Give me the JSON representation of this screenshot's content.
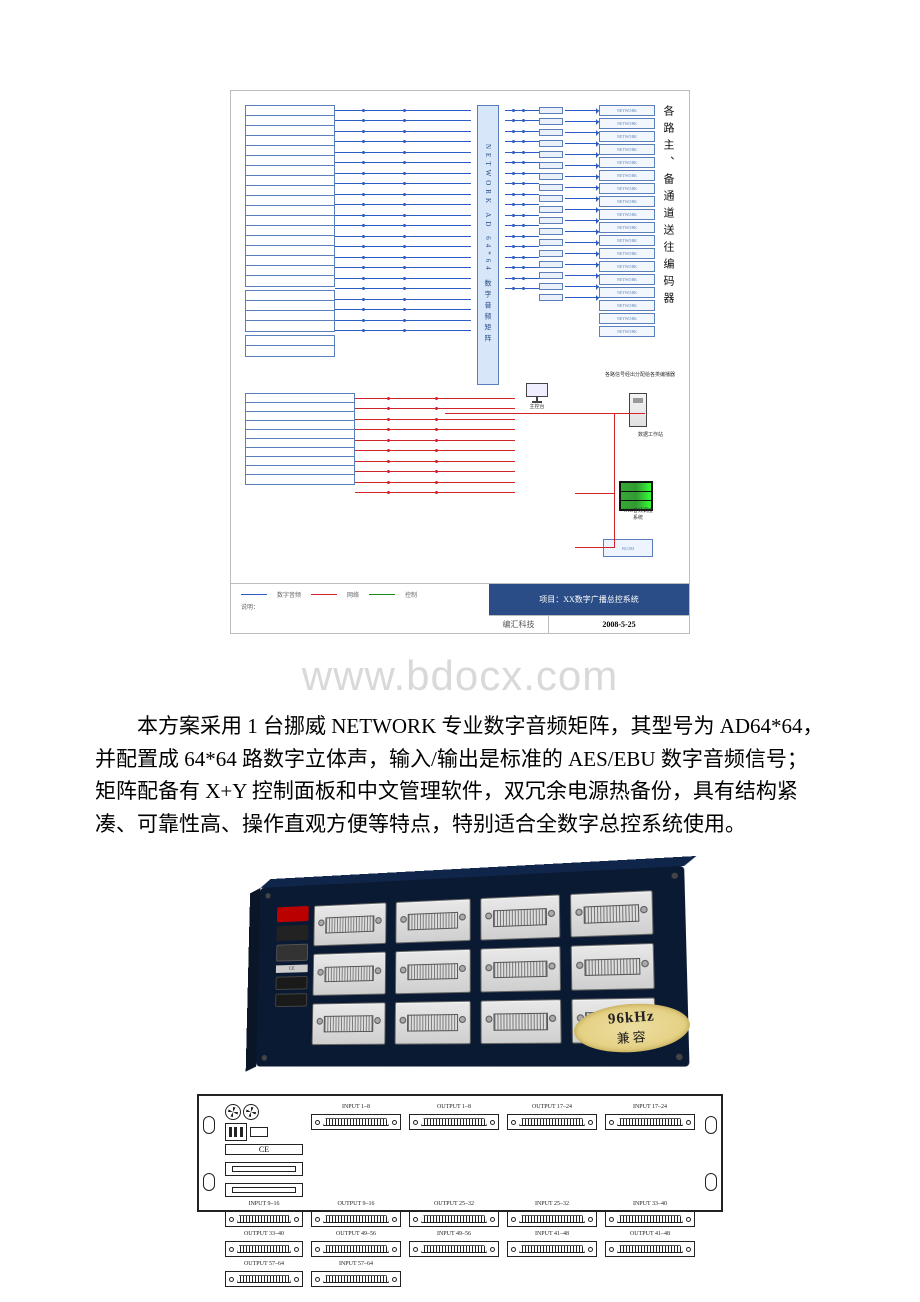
{
  "diagram": {
    "vertical_label": "各路主、备通道送往编码器",
    "central_text": "NETWORK AD 64*64 数字音频矩阵",
    "footer": {
      "project_title": "项目：XX数字广播总控系统",
      "vendor": "编汇科技",
      "date": "2008-5-25",
      "note": "说明："
    },
    "legend": {
      "blue": "数字音频",
      "red": "网络",
      "green": "控制"
    },
    "icons": {
      "pc1": "主控台",
      "server": "数据工作站",
      "rack": "VAC音频调度系统",
      "bus_box": "BCOM"
    },
    "right_caption_a": "各路信号经出分配给各类编播器",
    "left_rows_1": 18,
    "left_rows_2": 4,
    "left_rows_3": 2,
    "left_rows_4": 10,
    "right_rows": 18,
    "card_rows": 18,
    "card_label": "NETWORK"
  },
  "watermark": "www.bdocx.com",
  "paragraph": "本方案采用 1 台挪威 NETWORK 专业数字音频矩阵，其型号为 AD64*64，并配置成 64*64 路数字立体声，输入/输出是标准的 AES/EBU 数字音频信号；矩阵配备有 X+Y 控制面板和中文管理软件，双冗余电源热备份，具有结构紧凑、可靠性高、操作直观方便等特点，特别适合全数字总控系统使用。",
  "photo": {
    "badge_line1": "96kHz",
    "badge_line2": "兼容",
    "port_rows": 3,
    "port_cols": 4,
    "ctrl_label": "CE"
  },
  "rear": {
    "grid_rows": 4,
    "grid_cols": 4,
    "labels": [
      "INPUT 1–8",
      "OUTPUT 1–8",
      "OUTPUT 17–24",
      "INPUT 17–24",
      "INPUT 9–16",
      "OUTPUT 9–16",
      "OUTPUT 25–32",
      "INPUT 25–32",
      "INPUT 33–40",
      "OUTPUT 33–40",
      "OUTPUT 49–56",
      "INPUT 49–56",
      "INPUT 41–48",
      "OUTPUT 41–48",
      "OUTPUT 57–64",
      "INPUT 57–64"
    ],
    "ce": "CE"
  }
}
